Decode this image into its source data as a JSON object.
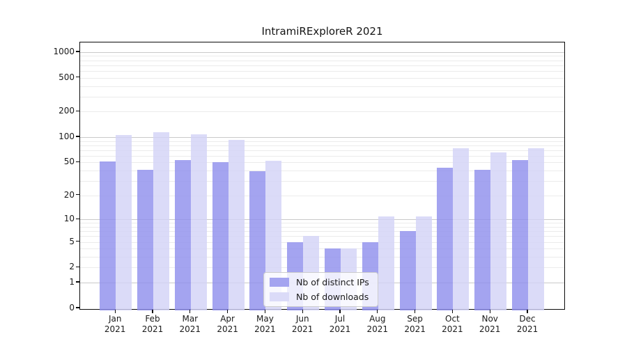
{
  "title": "IntramiRExploreR 2021",
  "chart_data": {
    "type": "bar",
    "title": "IntramiRExploreR 2021",
    "categories": [
      "Jan 2021",
      "Feb 2021",
      "Mar 2021",
      "Apr 2021",
      "May 2021",
      "Jun 2021",
      "Jul 2021",
      "Aug 2021",
      "Sep 2021",
      "Oct 2021",
      "Nov 2021",
      "Dec 2021"
    ],
    "series": [
      {
        "name": "Nb of distinct IPs",
        "color": "#a4a4f0",
        "fill": "rgba(144,144,237,0.82)",
        "values": [
          51,
          41,
          53,
          50,
          39,
          5,
          4,
          5,
          7,
          43,
          41,
          53
        ]
      },
      {
        "name": "Nb of downloads",
        "color": "#dbdbf8",
        "fill": "rgba(211,211,246,0.82)",
        "values": [
          105,
          114,
          107,
          92,
          52,
          6,
          4,
          11,
          11,
          74,
          66,
          74
        ]
      }
    ],
    "xlabel": "",
    "ylabel": "",
    "y_scale": "log1p",
    "y_ticks": [
      0,
      1,
      2,
      5,
      10,
      20,
      50,
      100,
      200,
      500,
      1000
    ],
    "ylim": [
      0,
      1270
    ],
    "grid": "horizontal major+minor (log decades)",
    "grid_major_values": [
      1,
      10,
      100,
      1000
    ],
    "legend": {
      "position": "lower center",
      "entries": [
        "Nb of distinct IPs",
        "Nb of downloads"
      ]
    },
    "colors": {
      "grid_major": "#c9c9c9",
      "grid_minor": "#ebebeb",
      "axis": "#0a0a0a",
      "text": "#1a1a1a",
      "background": "#ffffff"
    }
  }
}
